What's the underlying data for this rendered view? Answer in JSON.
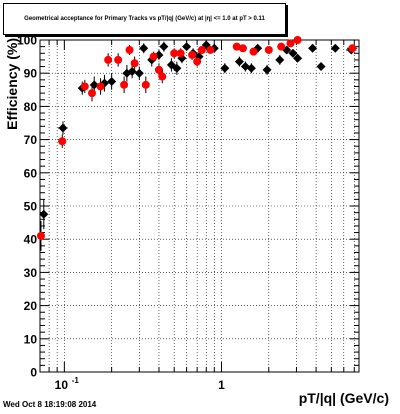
{
  "title": "Geometrical acceptance for Primary Tracks vs pT/|q| (GeV/c) at |η| <= 1.0 at pT > 0.11",
  "timestamp": "Wed Oct  8 18:19:08 2014",
  "chart_data": {
    "type": "scatter",
    "xlabel": "pT/|q| (GeV/c)",
    "ylabel": "Efficiency (%)",
    "xscale": "log",
    "xlim": [
      0.07,
      7.5
    ],
    "ylim": [
      0,
      100
    ],
    "grid": true,
    "xtick_labels": [
      {
        "value": 0.1,
        "base": "10",
        "exp": "-1"
      },
      {
        "value": 1,
        "base": "1",
        "exp": ""
      }
    ],
    "ytick_labels": [
      0,
      10,
      20,
      30,
      40,
      50,
      60,
      70,
      80,
      90,
      100
    ],
    "series": [
      {
        "color": "#000000",
        "marker": "diamond",
        "points": [
          {
            "x": 0.074,
            "y": 47.5,
            "xerr": 0.004,
            "yerr": 4.5
          },
          {
            "x": 0.098,
            "y": 73.5,
            "xerr": 0.007,
            "yerr": 2.0
          },
          {
            "x": 0.13,
            "y": 85.5,
            "xerr": 0.006,
            "yerr": 2.0
          },
          {
            "x": 0.155,
            "y": 86.5,
            "xerr": 0.006,
            "yerr": 2.5
          },
          {
            "x": 0.18,
            "y": 87.0,
            "xerr": 0.006,
            "yerr": 2.5
          },
          {
            "x": 0.2,
            "y": 87.5,
            "xerr": 0.006,
            "yerr": 2.5
          },
          {
            "x": 0.25,
            "y": 90.0,
            "xerr": 0.006,
            "yerr": 2.5
          },
          {
            "x": 0.27,
            "y": 90.5,
            "xerr": 0.006,
            "yerr": 2.0
          },
          {
            "x": 0.3,
            "y": 90.0,
            "xerr": 0.006,
            "yerr": 2.0
          },
          {
            "x": 0.32,
            "y": 97.5,
            "xerr": 0.006,
            "yerr": 1.5
          },
          {
            "x": 0.36,
            "y": 94.0,
            "xerr": 0.006,
            "yerr": 2.0
          },
          {
            "x": 0.4,
            "y": 95.5,
            "xerr": 0.006,
            "yerr": 1.5
          },
          {
            "x": 0.43,
            "y": 98.0,
            "xerr": 0.006,
            "yerr": 1.5
          },
          {
            "x": 0.48,
            "y": 92.5,
            "xerr": 0.008,
            "yerr": 2.0
          },
          {
            "x": 0.52,
            "y": 91.5,
            "xerr": 0.008,
            "yerr": 2.0
          },
          {
            "x": 0.56,
            "y": 94.5,
            "xerr": 0.008,
            "yerr": 1.5
          },
          {
            "x": 0.6,
            "y": 98.0,
            "xerr": 0.01,
            "yerr": 1.0
          },
          {
            "x": 0.66,
            "y": 96.0,
            "xerr": 0.01,
            "yerr": 1.5
          },
          {
            "x": 0.72,
            "y": 95.0,
            "xerr": 0.01,
            "yerr": 1.5
          },
          {
            "x": 0.8,
            "y": 98.5,
            "xerr": 0.015,
            "yerr": 1.0
          },
          {
            "x": 0.9,
            "y": 97.5,
            "xerr": 0.015,
            "yerr": 1.0
          },
          {
            "x": 1.05,
            "y": 91.5,
            "xerr": 0.03,
            "yerr": 1.5
          },
          {
            "x": 1.3,
            "y": 93.5,
            "xerr": 0.03,
            "yerr": 1.5
          },
          {
            "x": 1.42,
            "y": 92.0,
            "xerr": 0.03,
            "yerr": 1.5
          },
          {
            "x": 1.55,
            "y": 91.5,
            "xerr": 0.03,
            "yerr": 1.5
          },
          {
            "x": 1.7,
            "y": 97.5,
            "xerr": 0.03,
            "yerr": 1.0
          },
          {
            "x": 1.95,
            "y": 91.0,
            "xerr": 0.05,
            "yerr": 1.5
          },
          {
            "x": 2.35,
            "y": 94.0,
            "xerr": 0.07,
            "yerr": 1.5
          },
          {
            "x": 2.6,
            "y": 97.0,
            "xerr": 0.07,
            "yerr": 1.0
          },
          {
            "x": 2.85,
            "y": 96.0,
            "xerr": 0.07,
            "yerr": 1.0
          },
          {
            "x": 3.05,
            "y": 94.5,
            "xerr": 0.07,
            "yerr": 1.0
          },
          {
            "x": 3.8,
            "y": 97.5,
            "xerr": 0.1,
            "yerr": 1.0
          },
          {
            "x": 4.3,
            "y": 92.0,
            "xerr": 0.15,
            "yerr": 1.0
          },
          {
            "x": 5.3,
            "y": 97.5,
            "xerr": 0.3,
            "yerr": 1.0
          },
          {
            "x": 6.7,
            "y": 97.0,
            "xerr": 0.5,
            "yerr": 1.0
          }
        ]
      },
      {
        "color": "#ff0000",
        "marker": "circle",
        "points": [
          {
            "x": 0.071,
            "y": 41.0,
            "xerr": 0.004,
            "yerr": 4.5
          },
          {
            "x": 0.097,
            "y": 69.5,
            "xerr": 0.006,
            "yerr": 2.0
          },
          {
            "x": 0.135,
            "y": 86.0,
            "xerr": 0.006,
            "yerr": 2.0
          },
          {
            "x": 0.15,
            "y": 84.0,
            "xerr": 0.006,
            "yerr": 2.5
          },
          {
            "x": 0.17,
            "y": 86.0,
            "xerr": 0.006,
            "yerr": 2.5
          },
          {
            "x": 0.19,
            "y": 94.0,
            "xerr": 0.006,
            "yerr": 2.0
          },
          {
            "x": 0.22,
            "y": 94.0,
            "xerr": 0.006,
            "yerr": 2.0
          },
          {
            "x": 0.24,
            "y": 86.5,
            "xerr": 0.006,
            "yerr": 2.5
          },
          {
            "x": 0.26,
            "y": 97.0,
            "xerr": 0.006,
            "yerr": 1.5
          },
          {
            "x": 0.28,
            "y": 93.0,
            "xerr": 0.006,
            "yerr": 2.0
          },
          {
            "x": 0.33,
            "y": 86.5,
            "xerr": 0.006,
            "yerr": 2.5
          },
          {
            "x": 0.37,
            "y": 95.0,
            "xerr": 0.006,
            "yerr": 1.5
          },
          {
            "x": 0.4,
            "y": 91.0,
            "xerr": 0.006,
            "yerr": 2.0
          },
          {
            "x": 0.42,
            "y": 89.0,
            "xerr": 0.006,
            "yerr": 2.0
          },
          {
            "x": 0.5,
            "y": 96.0,
            "xerr": 0.008,
            "yerr": 1.5
          },
          {
            "x": 0.55,
            "y": 96.0,
            "xerr": 0.008,
            "yerr": 1.5
          },
          {
            "x": 0.65,
            "y": 95.5,
            "xerr": 0.01,
            "yerr": 1.5
          },
          {
            "x": 0.7,
            "y": 93.5,
            "xerr": 0.01,
            "yerr": 1.5
          },
          {
            "x": 0.75,
            "y": 97.0,
            "xerr": 0.015,
            "yerr": 1.0
          },
          {
            "x": 0.85,
            "y": 97.0,
            "xerr": 0.015,
            "yerr": 1.0
          },
          {
            "x": 1.25,
            "y": 98.0,
            "xerr": 0.03,
            "yerr": 1.0
          },
          {
            "x": 1.37,
            "y": 97.5,
            "xerr": 0.03,
            "yerr": 1.0
          },
          {
            "x": 1.6,
            "y": 96.5,
            "xerr": 0.03,
            "yerr": 1.0
          },
          {
            "x": 2.0,
            "y": 97.0,
            "xerr": 0.05,
            "yerr": 1.0
          },
          {
            "x": 2.4,
            "y": 98.0,
            "xerr": 0.07,
            "yerr": 1.0
          },
          {
            "x": 2.75,
            "y": 99.0,
            "xerr": 0.07,
            "yerr": 1.0
          },
          {
            "x": 3.05,
            "y": 100.0,
            "xerr": 0.07,
            "yerr": 1.0
          },
          {
            "x": 6.8,
            "y": 97.5,
            "xerr": 0.5,
            "yerr": 1.0
          }
        ]
      }
    ]
  }
}
